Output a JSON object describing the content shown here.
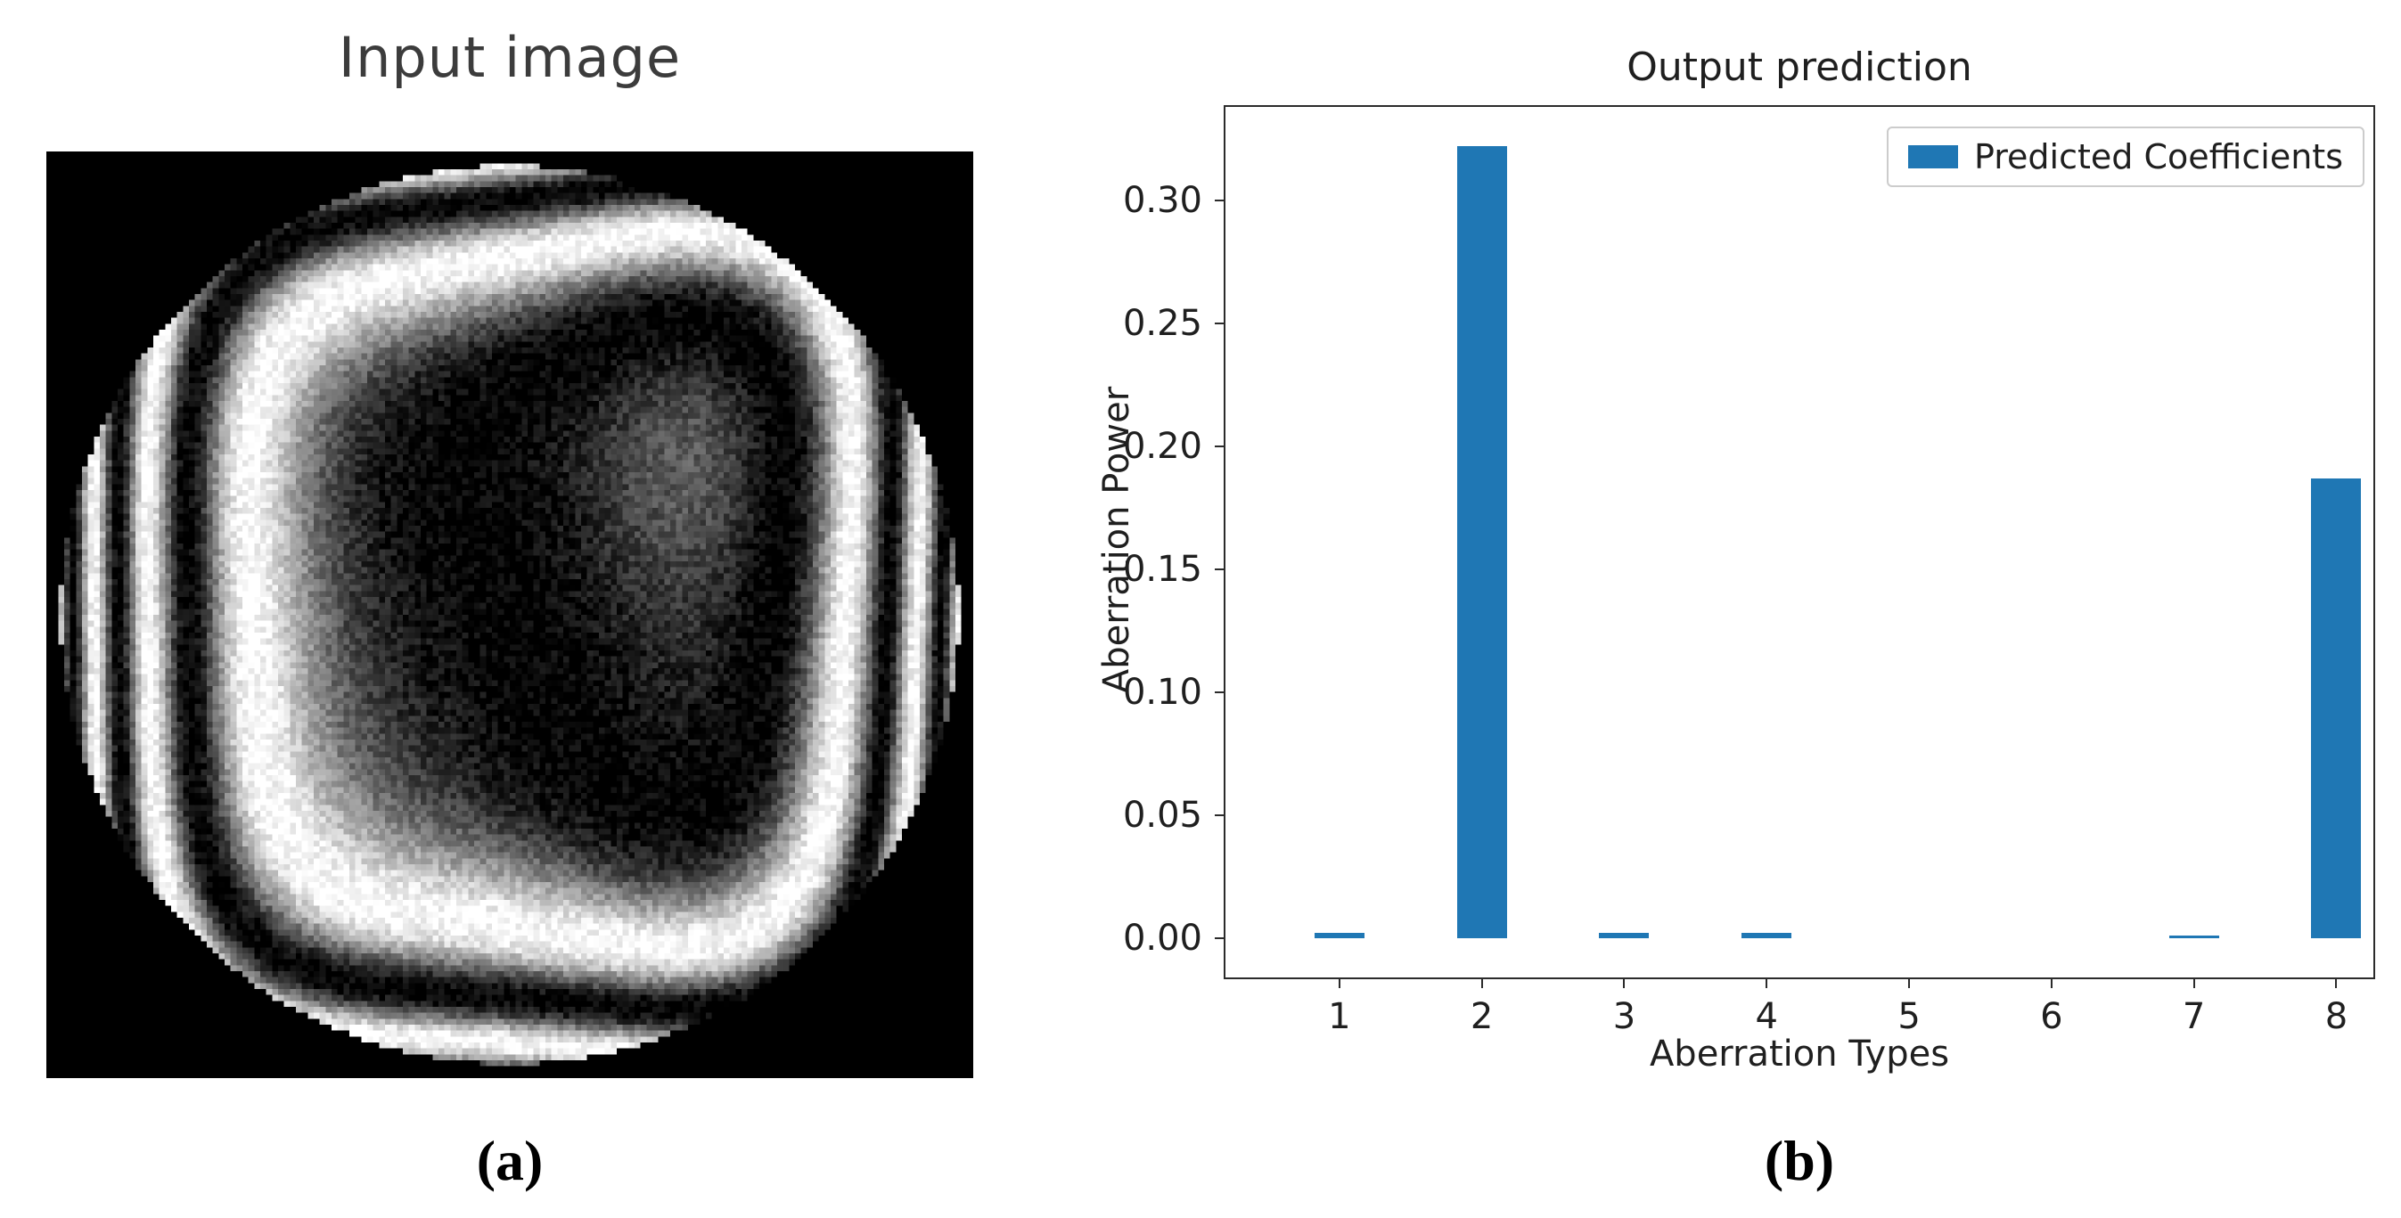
{
  "figure": {
    "panel_a": {
      "title": "Input image",
      "caption": "(a)"
    },
    "panel_b": {
      "caption": "(b)"
    }
  },
  "chart_data": {
    "type": "bar",
    "title": "Output prediction",
    "xlabel": "Aberration Types",
    "ylabel": "Aberration Power",
    "categories": [
      "1",
      "2",
      "3",
      "4",
      "5",
      "6",
      "7",
      "8"
    ],
    "series": [
      {
        "name": "Predicted Coefficients",
        "values": [
          0.002,
          0.322,
          0.002,
          0.002,
          0,
          0,
          0.001,
          0.187
        ]
      }
    ],
    "values": [
      0.002,
      0.322,
      0.002,
      0.002,
      0,
      0,
      0.001,
      0.187
    ],
    "bar_color": "#1f77b4",
    "bar_width_units": 0.35,
    "legend": {
      "label": "Predicted Coefficients",
      "position": "upper right"
    },
    "xlim": [
      0.2,
      8.26
    ],
    "ylim": [
      -0.016,
      0.338
    ],
    "yticks": [
      "0.00",
      "0.05",
      "0.10",
      "0.15",
      "0.20",
      "0.25",
      "0.30"
    ],
    "grid": false
  }
}
